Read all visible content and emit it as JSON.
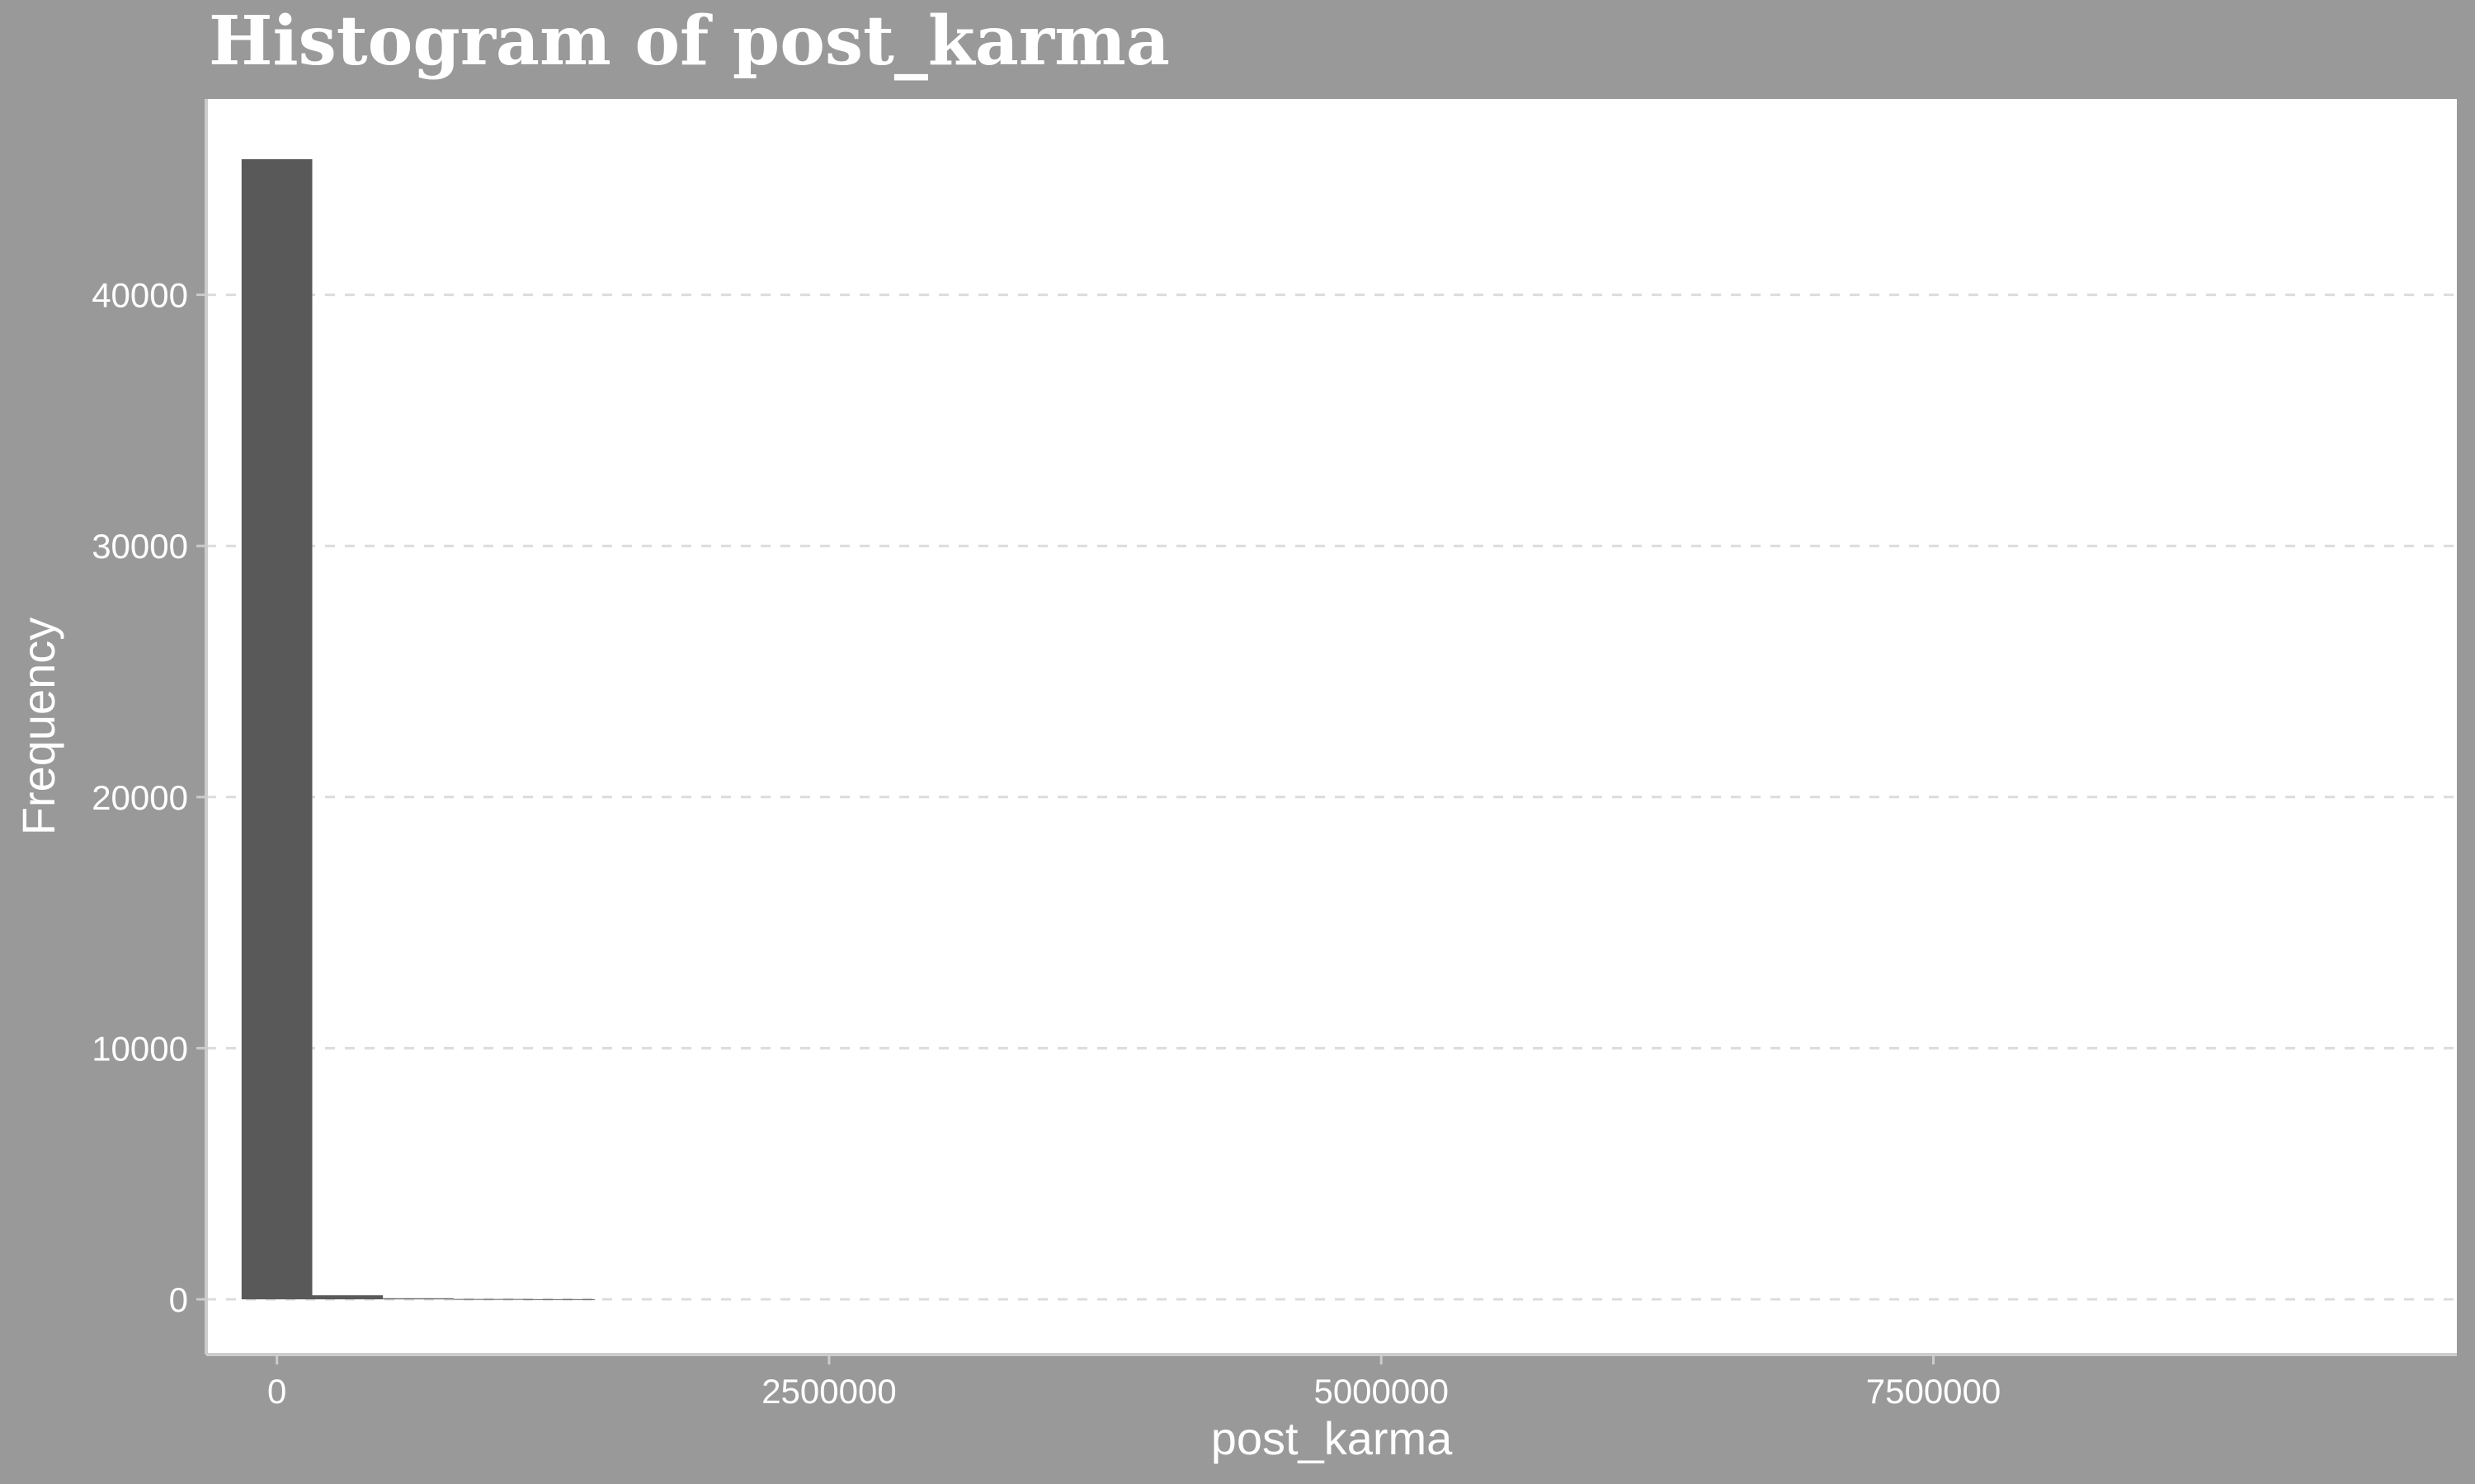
{
  "colors": {
    "outer_background": "#999999",
    "panel_background": "#ffffff",
    "bar_fill": "#595959",
    "grid_line": "#dcdcdc",
    "axis_line": "#cccccc",
    "text": "#ffffff"
  },
  "chart_data": {
    "type": "bar",
    "title": "Histogram of post_karma",
    "xlabel": "post_karma",
    "ylabel": "Frequency",
    "x_ticks": [
      0,
      2500000,
      5000000,
      7500000
    ],
    "x_tick_labels": [
      "0",
      "2500000",
      "5000000",
      "7500000"
    ],
    "y_ticks": [
      0,
      10000,
      20000,
      30000,
      40000
    ],
    "y_tick_labels": [
      "0",
      "10000",
      "20000",
      "30000",
      "40000"
    ],
    "xlim": [
      -320000,
      9870000
    ],
    "ylim": [
      -2200,
      47800
    ],
    "grid": "horizontal dashed",
    "bin_width": 320000,
    "bins": [
      {
        "x_start": -160000,
        "x_end": 160000,
        "count": 45400
      },
      {
        "x_start": 160000,
        "x_end": 480000,
        "count": 160
      },
      {
        "x_start": 480000,
        "x_end": 800000,
        "count": 40
      },
      {
        "x_start": 800000,
        "x_end": 1120000,
        "count": 12
      },
      {
        "x_start": 1120000,
        "x_end": 1440000,
        "count": 5
      }
    ]
  }
}
